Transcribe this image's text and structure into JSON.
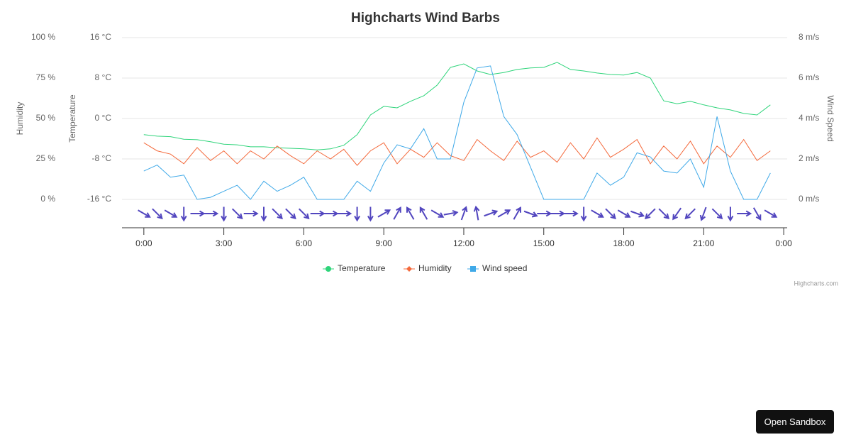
{
  "chart_data": {
    "type": "line",
    "title": "Highcharts Wind Barbs",
    "x": [
      0,
      0.5,
      1,
      1.5,
      2,
      2.5,
      3,
      3.5,
      4,
      4.5,
      5,
      5.5,
      6,
      6.5,
      7,
      7.5,
      8,
      8.5,
      9,
      9.5,
      10,
      10.5,
      11,
      11.5,
      12,
      12.5,
      13,
      13.5,
      14,
      14.5,
      15,
      15.5,
      16,
      16.5,
      17,
      17.5,
      18,
      18.5,
      19,
      19.5,
      20,
      20.5,
      21,
      21.5,
      22,
      22.5,
      23,
      23.5
    ],
    "xlim": [
      -0.82,
      24.13
    ],
    "xticks": [
      {
        "value": 0,
        "label": "0:00"
      },
      {
        "value": 3,
        "label": "3:00"
      },
      {
        "value": 6,
        "label": "6:00"
      },
      {
        "value": 9,
        "label": "9:00"
      },
      {
        "value": 12,
        "label": "12:00"
      },
      {
        "value": 15,
        "label": "15:00"
      },
      {
        "value": 18,
        "label": "18:00"
      },
      {
        "value": 21,
        "label": "21:00"
      },
      {
        "value": 24,
        "label": "0:00"
      }
    ],
    "grid": true,
    "series": [
      {
        "name": "Temperature",
        "color": "#2ed47a",
        "marker": "circle",
        "axis_side": "left-inner",
        "axis_title": "Temperature",
        "ylim": [
          -16,
          16
        ],
        "yticks": [
          {
            "value": -16,
            "label": "-16 °C"
          },
          {
            "value": -8,
            "label": "-8 °C"
          },
          {
            "value": 0,
            "label": "0 °C"
          },
          {
            "value": 8,
            "label": "8 °C"
          },
          {
            "value": 16,
            "label": "16 °C"
          }
        ],
        "values": [
          -3.2,
          -3.5,
          -3.6,
          -4.1,
          -4.2,
          -4.6,
          -5.1,
          -5.2,
          -5.6,
          -5.6,
          -5.8,
          -5.9,
          -6.0,
          -6.2,
          -6.0,
          -5.3,
          -3.2,
          0.7,
          2.4,
          2.1,
          3.4,
          4.5,
          6.6,
          10.1,
          10.8,
          9.4,
          8.7,
          9.1,
          9.7,
          10.0,
          10.1,
          11.1,
          9.7,
          9.4,
          9.0,
          8.7,
          8.6,
          9.1,
          8.0,
          3.5,
          2.9,
          3.4,
          2.7,
          2.1,
          1.7,
          1.0,
          0.7,
          2.7
        ]
      },
      {
        "name": "Humidity",
        "color": "#f4693b",
        "marker": "diamond",
        "axis_side": "left-outer",
        "axis_title": "Humidity",
        "ylim": [
          0,
          100
        ],
        "yticks": [
          {
            "value": 0,
            "label": "0 %"
          },
          {
            "value": 25,
            "label": "25 %"
          },
          {
            "value": 50,
            "label": "50 %"
          },
          {
            "value": 75,
            "label": "75 %"
          },
          {
            "value": 100,
            "label": "100 %"
          }
        ],
        "values": [
          35,
          30,
          28,
          22,
          32,
          24,
          30,
          22,
          30,
          25,
          33,
          27,
          22,
          30,
          25,
          31,
          21,
          30,
          35,
          22,
          31,
          26,
          35,
          27,
          24,
          37,
          30,
          24,
          36,
          26,
          30,
          23,
          35,
          25,
          38,
          26,
          31,
          37,
          22,
          33,
          25,
          36,
          22,
          33,
          26,
          37,
          24,
          30
        ]
      },
      {
        "name": "Wind speed",
        "color": "#3fa9e8",
        "marker": "square",
        "axis_side": "right",
        "axis_title": "Wind Speed",
        "ylim": [
          0,
          8
        ],
        "yticks": [
          {
            "value": 0,
            "label": "0 m/s"
          },
          {
            "value": 2,
            "label": "2 m/s"
          },
          {
            "value": 4,
            "label": "4 m/s"
          },
          {
            "value": 6,
            "label": "6 m/s"
          },
          {
            "value": 8,
            "label": "8 m/s"
          }
        ],
        "values": [
          1.4,
          1.7,
          1.1,
          1.2,
          0,
          0.1,
          0.4,
          0.7,
          0,
          0.9,
          0.4,
          0.7,
          1.1,
          0,
          0,
          0,
          0.9,
          0.4,
          1.8,
          2.7,
          2.5,
          3.5,
          2.0,
          2.0,
          4.8,
          6.5,
          6.6,
          4.1,
          3.2,
          1.6,
          0,
          0,
          0,
          0,
          1.3,
          0.7,
          1.1,
          2.3,
          2.1,
          1.4,
          1.3,
          2.0,
          0.6,
          4.1,
          1.4,
          0,
          0,
          1.3
        ]
      }
    ],
    "wind_barbs": {
      "color": "#5246bf",
      "directions": [
        120,
        135,
        120,
        180,
        90,
        90,
        180,
        135,
        90,
        180,
        135,
        135,
        135,
        90,
        90,
        90,
        180,
        180,
        60,
        30,
        330,
        330,
        120,
        80,
        20,
        350,
        70,
        60,
        30,
        110,
        90,
        90,
        90,
        180,
        120,
        135,
        120,
        110,
        225,
        135,
        215,
        225,
        200,
        135,
        180,
        90,
        150,
        120
      ]
    }
  },
  "ui": {
    "credit": "Highcharts.com",
    "button": "Open Sandbox"
  }
}
